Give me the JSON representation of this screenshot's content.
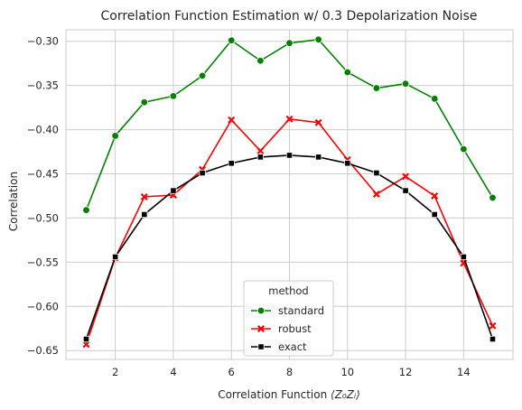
{
  "chart_data": {
    "type": "line",
    "title": "Correlation Function Estimation w/ 0.3 Depolarization Noise",
    "xlabel_prefix": "Correlation Function ",
    "xlabel_math": "⟨Z₀Zᵢ⟩",
    "ylabel": "Correlation",
    "x": [
      1,
      2,
      3,
      4,
      5,
      6,
      7,
      8,
      9,
      10,
      11,
      12,
      13,
      14,
      15
    ],
    "xlim": [
      0.3,
      15.7
    ],
    "ylim": [
      -0.66,
      -0.287
    ],
    "xticks": [
      2,
      4,
      6,
      8,
      10,
      12,
      14
    ],
    "yticks": [
      -0.65,
      -0.6,
      -0.55,
      -0.5,
      -0.45,
      -0.4,
      -0.35,
      -0.3
    ],
    "ytick_labels": [
      "−0.65",
      "−0.60",
      "−0.55",
      "−0.50",
      "−0.45",
      "−0.40",
      "−0.35",
      "−0.30"
    ],
    "grid": true,
    "legend": {
      "title": "method",
      "position": "bottom-center"
    },
    "series": [
      {
        "name": "standard",
        "color": "#008000",
        "marker": "circle",
        "values": [
          -0.491,
          -0.407,
          -0.369,
          -0.362,
          -0.339,
          -0.299,
          -0.322,
          -0.302,
          -0.298,
          -0.335,
          -0.353,
          -0.348,
          -0.365,
          -0.422,
          -0.477
        ]
      },
      {
        "name": "robust",
        "color": "#ff0000",
        "marker": "x",
        "values": [
          -0.643,
          -0.545,
          -0.476,
          -0.474,
          -0.445,
          -0.389,
          -0.424,
          -0.388,
          -0.392,
          -0.434,
          -0.473,
          -0.453,
          -0.475,
          -0.551,
          -0.622
        ]
      },
      {
        "name": "exact",
        "color": "#000000",
        "marker": "square",
        "values": [
          -0.637,
          -0.544,
          -0.496,
          -0.469,
          -0.449,
          -0.438,
          -0.431,
          -0.429,
          -0.431,
          -0.438,
          -0.449,
          -0.469,
          -0.496,
          -0.544,
          -0.637
        ]
      }
    ]
  }
}
